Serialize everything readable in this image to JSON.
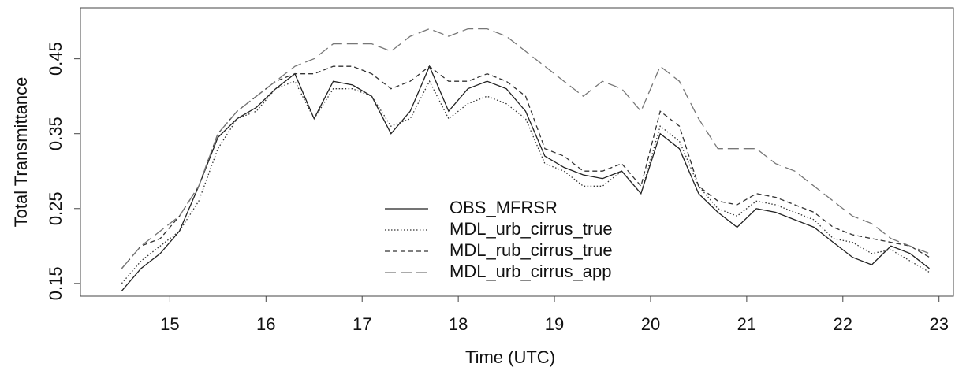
{
  "chart_data": {
    "type": "line",
    "xlabel": "Time (UTC)",
    "ylabel": "Total Transmittance",
    "x": [
      14.5,
      14.7,
      14.9,
      15.1,
      15.3,
      15.5,
      15.7,
      15.9,
      16.1,
      16.3,
      16.5,
      16.7,
      16.9,
      17.1,
      17.3,
      17.5,
      17.7,
      17.9,
      18.1,
      18.3,
      18.5,
      18.7,
      18.9,
      19.1,
      19.3,
      19.5,
      19.7,
      19.9,
      20.1,
      20.3,
      20.5,
      20.7,
      20.9,
      21.1,
      21.3,
      21.5,
      21.7,
      21.9,
      22.1,
      22.3,
      22.5,
      22.7,
      22.9
    ],
    "series": [
      {
        "name": "OBS_MFRSR",
        "color": "#222222",
        "dash": "solid",
        "values": [
          0.14,
          0.17,
          0.19,
          0.22,
          0.28,
          0.345,
          0.37,
          0.385,
          0.41,
          0.43,
          0.37,
          0.42,
          0.415,
          0.4,
          0.35,
          0.38,
          0.44,
          0.38,
          0.41,
          0.42,
          0.41,
          0.38,
          0.32,
          0.305,
          0.295,
          0.29,
          0.3,
          0.27,
          0.35,
          0.33,
          0.27,
          0.245,
          0.225,
          0.25,
          0.245,
          0.235,
          0.225,
          0.205,
          0.185,
          0.175,
          0.2,
          0.19,
          0.17
        ]
      },
      {
        "name": "MDL_urb_cirrus_true",
        "color": "#333333",
        "dash": "dotted",
        "values": [
          0.15,
          0.18,
          0.2,
          0.22,
          0.26,
          0.33,
          0.37,
          0.38,
          0.41,
          0.42,
          0.37,
          0.41,
          0.41,
          0.4,
          0.36,
          0.37,
          0.42,
          0.37,
          0.39,
          0.4,
          0.39,
          0.37,
          0.31,
          0.3,
          0.28,
          0.28,
          0.3,
          0.27,
          0.36,
          0.34,
          0.28,
          0.25,
          0.24,
          0.26,
          0.255,
          0.245,
          0.235,
          0.21,
          0.205,
          0.19,
          0.195,
          0.18,
          0.165
        ]
      },
      {
        "name": "MDL_rub_cirrus_true",
        "color": "#333333",
        "dash": "dashed",
        "values": [
          0.17,
          0.2,
          0.21,
          0.24,
          0.28,
          0.35,
          0.38,
          0.4,
          0.42,
          0.43,
          0.43,
          0.44,
          0.44,
          0.43,
          0.41,
          0.42,
          0.44,
          0.42,
          0.42,
          0.43,
          0.42,
          0.4,
          0.33,
          0.32,
          0.3,
          0.3,
          0.31,
          0.28,
          0.38,
          0.36,
          0.28,
          0.26,
          0.255,
          0.27,
          0.265,
          0.255,
          0.245,
          0.225,
          0.215,
          0.21,
          0.205,
          0.2,
          0.185
        ]
      },
      {
        "name": "MDL_urb_cirrus_app",
        "color": "#777777",
        "dash": "longdash",
        "values": [
          0.17,
          0.2,
          0.22,
          0.24,
          0.28,
          0.35,
          0.38,
          0.4,
          0.42,
          0.44,
          0.45,
          0.47,
          0.47,
          0.47,
          0.46,
          0.48,
          0.49,
          0.48,
          0.49,
          0.49,
          0.48,
          0.46,
          0.44,
          0.42,
          0.4,
          0.42,
          0.41,
          0.38,
          0.44,
          0.42,
          0.37,
          0.33,
          0.33,
          0.33,
          0.31,
          0.3,
          0.28,
          0.26,
          0.24,
          0.23,
          0.21,
          0.2,
          0.19
        ]
      }
    ],
    "xlim": [
      14.07,
      23.15
    ],
    "xticks": [
      15,
      16,
      17,
      18,
      19,
      20,
      21,
      22,
      23
    ],
    "ylim": [
      0.133,
      0.518
    ],
    "yticks": [
      0.15,
      0.25,
      0.35,
      0.45
    ],
    "legend": "bottom-center"
  }
}
